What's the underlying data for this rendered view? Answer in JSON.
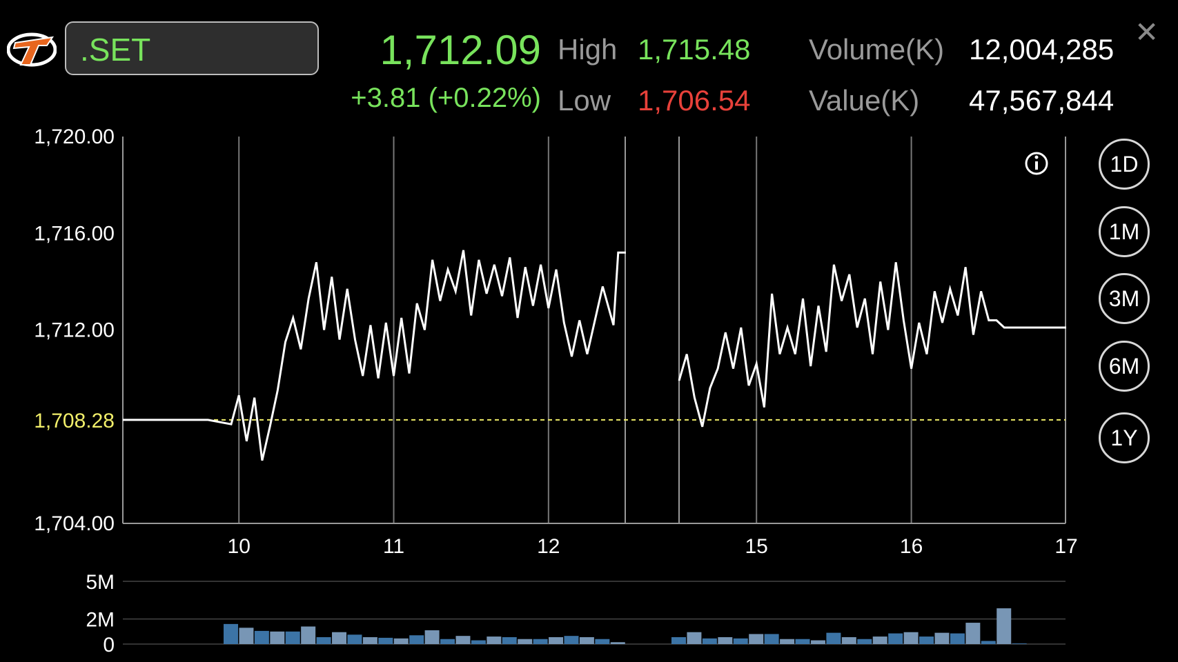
{
  "header": {
    "symbol": ".SET",
    "last_price": "1,712.09",
    "change": "+3.81 (+0.22%)",
    "high_label": "High",
    "high_value": "1,715.48",
    "low_label": "Low",
    "low_value": "1,706.54",
    "volume_label": "Volume(K)",
    "volume_value": "12,004,285",
    "value_label": "Value(K)",
    "value_value": "47,567,844",
    "close_icon": "close-icon"
  },
  "range_buttons": [
    {
      "label": "1D",
      "active": true
    },
    {
      "label": "1M",
      "active": false
    },
    {
      "label": "3M",
      "active": false
    },
    {
      "label": "6M",
      "active": false
    },
    {
      "label": "1Y",
      "active": false
    }
  ],
  "colors": {
    "up": "#78e35c",
    "down": "#e8413a",
    "prev_close": "#f2ef6a",
    "line": "#ffffff",
    "volume_bar": "#3c74a6",
    "volume_bar_light": "#7896b5"
  },
  "chart_data": {
    "type": "line",
    "title": "",
    "xlabel": "",
    "ylabel": "",
    "ylim": [
      1704,
      1720
    ],
    "y_ticks": [
      "1,720.00",
      "1,716.00",
      "1,712.00",
      "1,704.00"
    ],
    "prev_close": 1708.28,
    "prev_close_label": "1,708.28",
    "x_ticks": [
      "10",
      "11",
      "12",
      "15",
      "16",
      "17"
    ],
    "x_hours": [
      10,
      11,
      12,
      15,
      16,
      17
    ],
    "morning": {
      "t": [
        9.25,
        9.4,
        9.6,
        9.8,
        9.95,
        10.0,
        10.05,
        10.1,
        10.15,
        10.2,
        10.25,
        10.3,
        10.35,
        10.4,
        10.45,
        10.5,
        10.55,
        10.6,
        10.65,
        10.7,
        10.75,
        10.8,
        10.85,
        10.9,
        10.95,
        11.0,
        11.05,
        11.1,
        11.15,
        11.2,
        11.25,
        11.3,
        11.35,
        11.4,
        11.45,
        11.5,
        11.55,
        11.6,
        11.65,
        11.7,
        11.75,
        11.8,
        11.85,
        11.9,
        11.95,
        12.0,
        12.05,
        12.1,
        12.15,
        12.2,
        12.25,
        12.3,
        12.35,
        12.42,
        12.45,
        12.5
      ],
      "v": [
        1708.28,
        1708.28,
        1708.28,
        1708.28,
        1708.1,
        1709.3,
        1707.4,
        1709.2,
        1706.6,
        1708.0,
        1709.5,
        1711.5,
        1712.5,
        1711.2,
        1713.3,
        1714.8,
        1712.0,
        1714.2,
        1711.6,
        1713.7,
        1711.6,
        1710.1,
        1712.2,
        1710.0,
        1712.3,
        1710.1,
        1712.5,
        1710.2,
        1713.1,
        1712.0,
        1714.9,
        1713.2,
        1714.5,
        1713.6,
        1715.3,
        1712.6,
        1714.9,
        1713.5,
        1714.7,
        1713.4,
        1715.0,
        1712.5,
        1714.6,
        1713.0,
        1714.7,
        1712.9,
        1714.5,
        1712.3,
        1710.9,
        1712.4,
        1711.0,
        1712.4,
        1713.8,
        1712.2,
        1715.2,
        1715.2
      ]
    },
    "afternoon": {
      "t": [
        14.5,
        14.55,
        14.6,
        14.65,
        14.7,
        14.75,
        14.8,
        14.85,
        14.9,
        14.95,
        15.0,
        15.05,
        15.1,
        15.15,
        15.2,
        15.25,
        15.3,
        15.35,
        15.4,
        15.45,
        15.5,
        15.55,
        15.6,
        15.65,
        15.7,
        15.75,
        15.8,
        15.85,
        15.9,
        15.95,
        16.0,
        16.05,
        16.1,
        16.15,
        16.2,
        16.25,
        16.3,
        16.35,
        16.4,
        16.45,
        16.5,
        16.55,
        16.6,
        16.65,
        16.7,
        17.0
      ],
      "v": [
        1709.9,
        1711.0,
        1709.2,
        1708.0,
        1709.6,
        1710.4,
        1711.9,
        1710.4,
        1712.1,
        1709.7,
        1710.6,
        1708.8,
        1713.5,
        1711.0,
        1712.1,
        1711.0,
        1713.3,
        1710.5,
        1713.0,
        1711.1,
        1714.7,
        1713.2,
        1714.3,
        1712.1,
        1713.3,
        1711.0,
        1714.0,
        1712.0,
        1714.8,
        1712.4,
        1710.4,
        1712.3,
        1711.0,
        1713.6,
        1712.3,
        1713.7,
        1712.6,
        1714.6,
        1711.8,
        1713.6,
        1712.4,
        1712.4,
        1712.1,
        1712.1,
        1712.1,
        1712.1
      ]
    },
    "volume": {
      "y_ticks": [
        "5M",
        "2M",
        "0"
      ],
      "ylim": [
        0,
        5
      ],
      "morning_t": [
        9.95,
        10.05,
        10.15,
        10.25,
        10.35,
        10.45,
        10.55,
        10.65,
        10.75,
        10.85,
        10.95,
        11.05,
        11.15,
        11.25,
        11.35,
        11.45,
        11.55,
        11.65,
        11.75,
        11.85,
        11.95,
        12.05,
        12.15,
        12.25,
        12.35,
        12.45
      ],
      "morning_v": [
        1.6,
        1.3,
        1.05,
        1.0,
        1.0,
        1.4,
        0.55,
        0.95,
        0.75,
        0.55,
        0.5,
        0.45,
        0.7,
        1.1,
        0.4,
        0.65,
        0.3,
        0.6,
        0.55,
        0.4,
        0.4,
        0.55,
        0.65,
        0.55,
        0.4,
        0.15
      ],
      "afternoon_t": [
        14.5,
        14.6,
        14.7,
        14.8,
        14.9,
        15.0,
        15.1,
        15.2,
        15.3,
        15.4,
        15.5,
        15.6,
        15.7,
        15.8,
        15.9,
        16.0,
        16.1,
        16.2,
        16.3,
        16.4,
        16.5,
        16.6,
        16.7,
        16.8
      ],
      "afternoon_v": [
        0.55,
        0.95,
        0.45,
        0.55,
        0.45,
        0.8,
        0.8,
        0.4,
        0.4,
        0.3,
        0.9,
        0.55,
        0.4,
        0.6,
        0.85,
        0.95,
        0.6,
        0.9,
        0.85,
        1.7,
        0.25,
        2.85,
        0.05,
        0.0
      ]
    }
  }
}
